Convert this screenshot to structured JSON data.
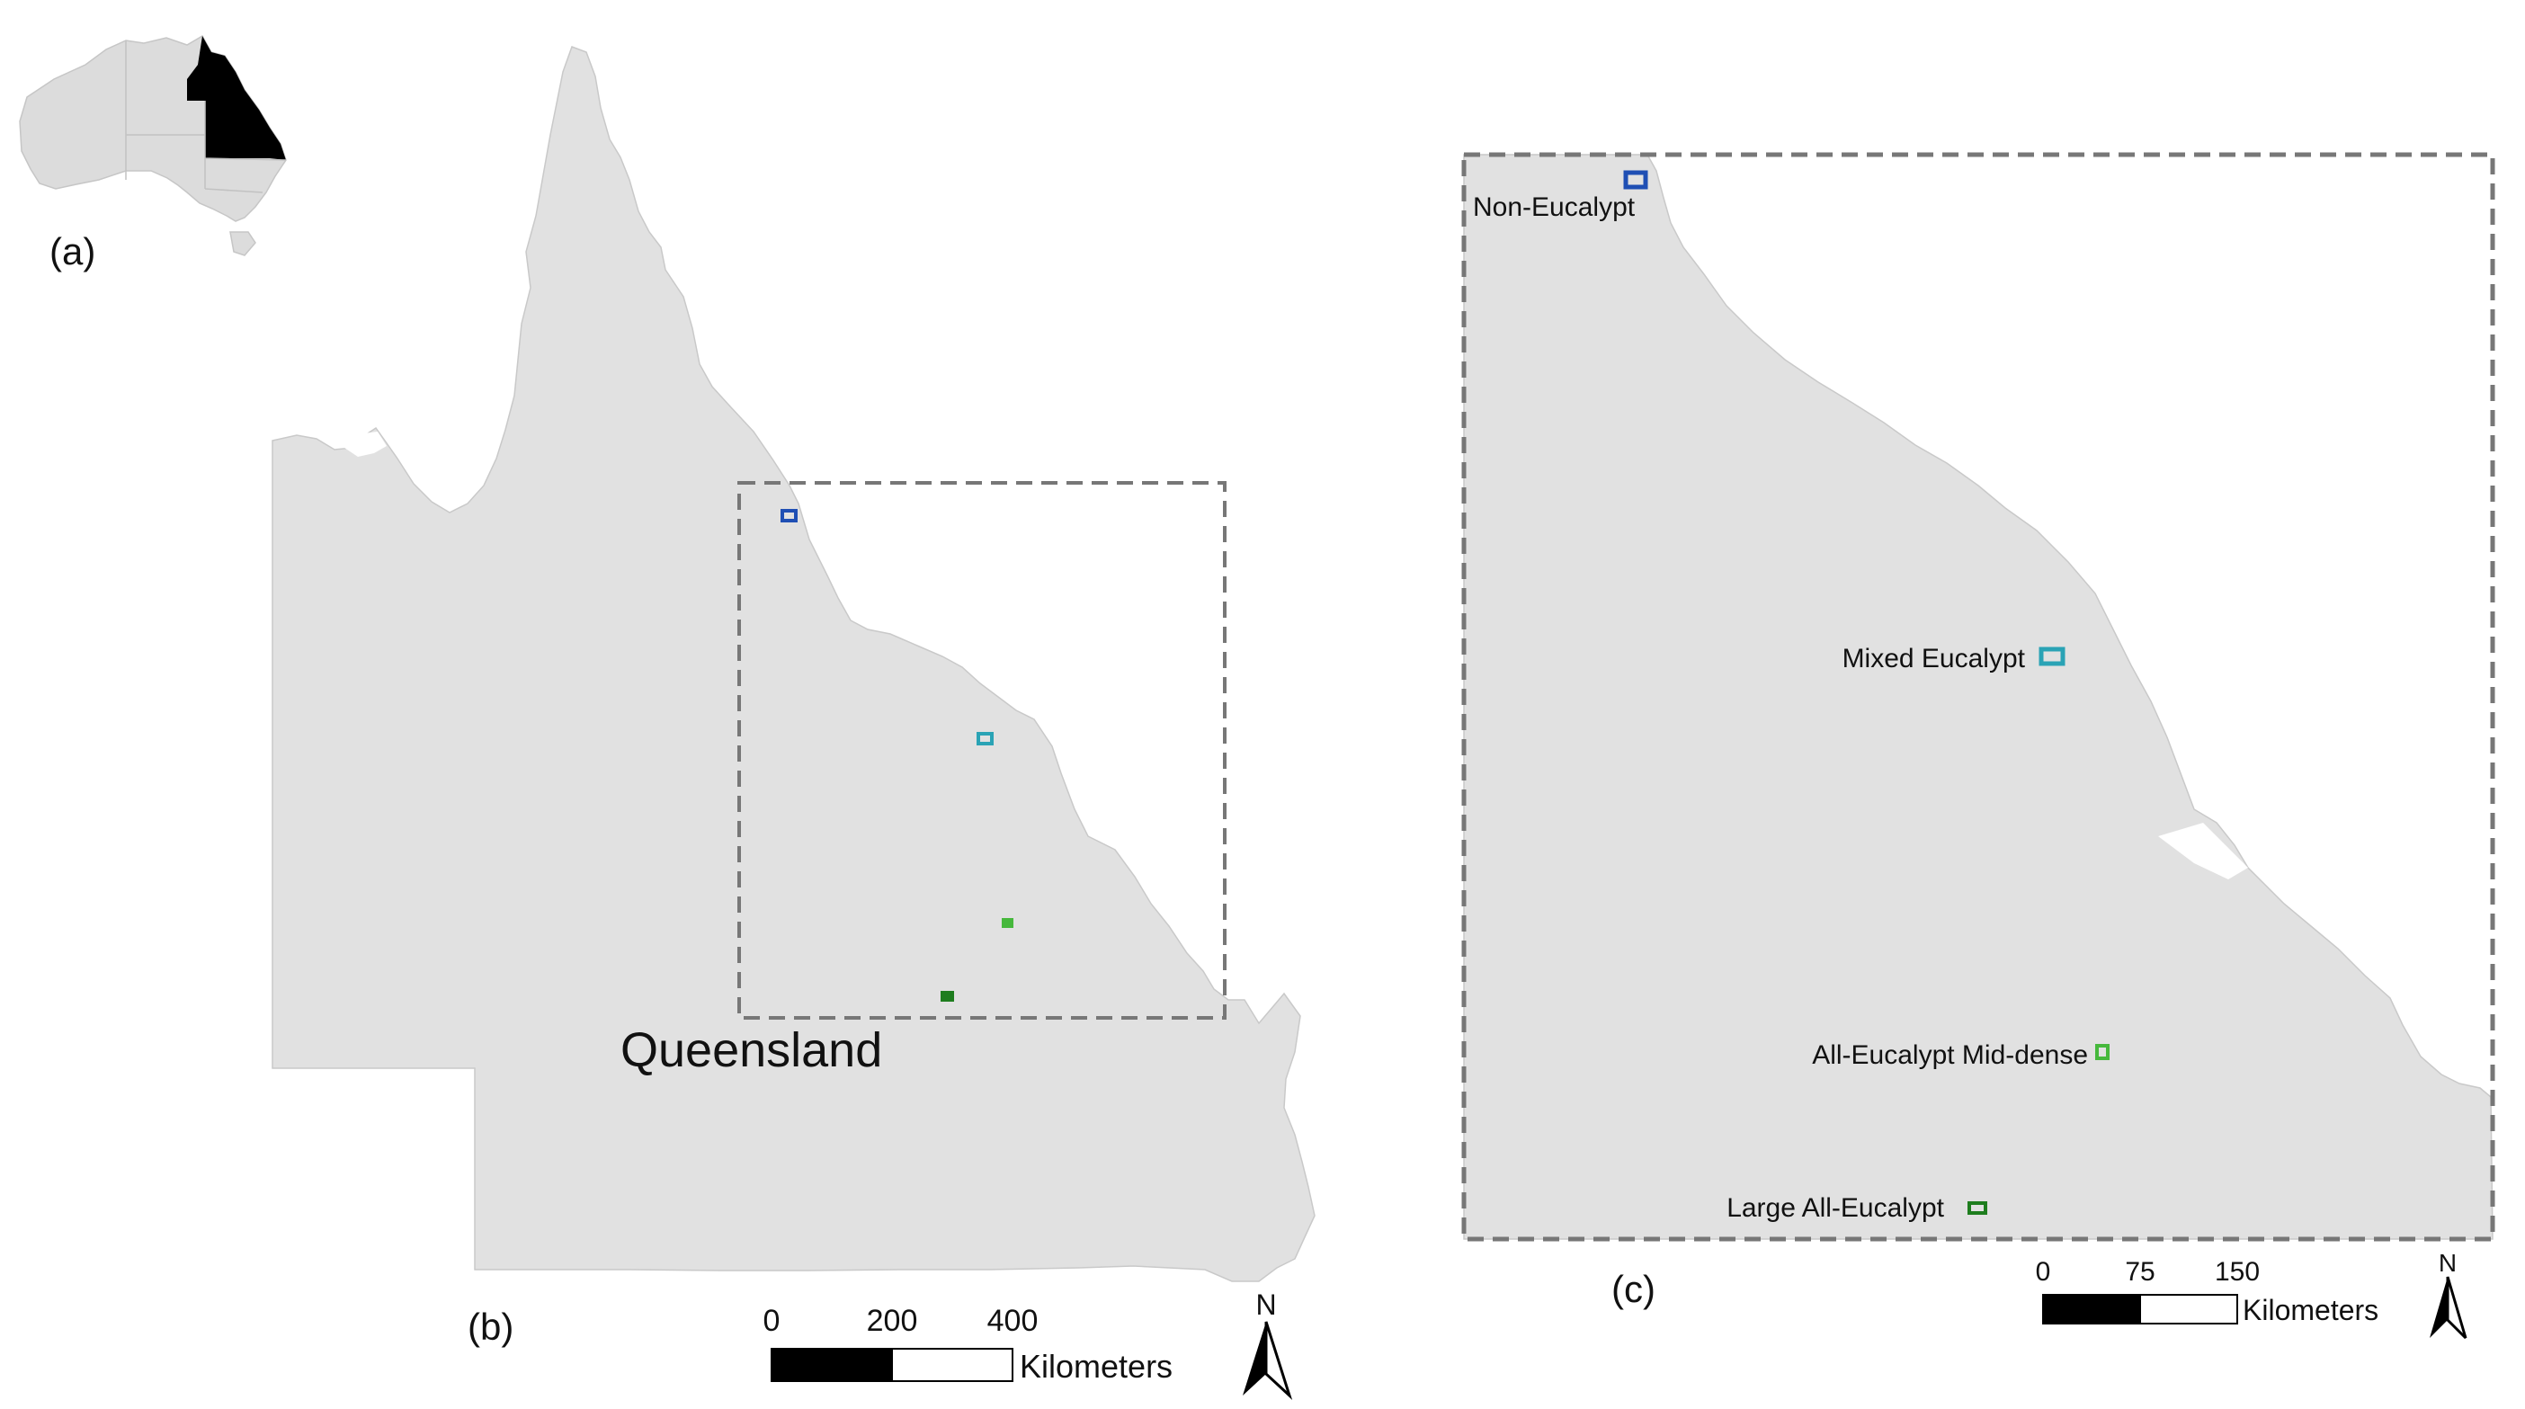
{
  "panels": {
    "a": {
      "label": "(a)"
    },
    "b": {
      "label": "(b)",
      "region_label": "Queensland"
    },
    "c": {
      "label": "(c)"
    }
  },
  "sites": [
    {
      "id": "non-eucalypt",
      "label": "Non-Eucalypt",
      "color": "#1f4fb4"
    },
    {
      "id": "mixed-eucalypt",
      "label": "Mixed Eucalypt",
      "color": "#2aa3b5"
    },
    {
      "id": "all-eucalypt-mid-dense",
      "label": "All-Eucalypt Mid-dense",
      "color": "#46b83c"
    },
    {
      "id": "large-all-eucalypt",
      "label": "Large All-Eucalypt",
      "color": "#1e7d1e"
    }
  ],
  "scale_bar_b": {
    "ticks": [
      "0",
      "200",
      "400"
    ],
    "unit": "Kilometers"
  },
  "scale_bar_c": {
    "ticks": [
      "0",
      "75",
      "150"
    ],
    "unit": "Kilometers"
  },
  "north_arrow": {
    "label": "N"
  },
  "colors": {
    "land": "#e1e1e1",
    "highlight_state": "#000000",
    "frame": "#777777"
  }
}
